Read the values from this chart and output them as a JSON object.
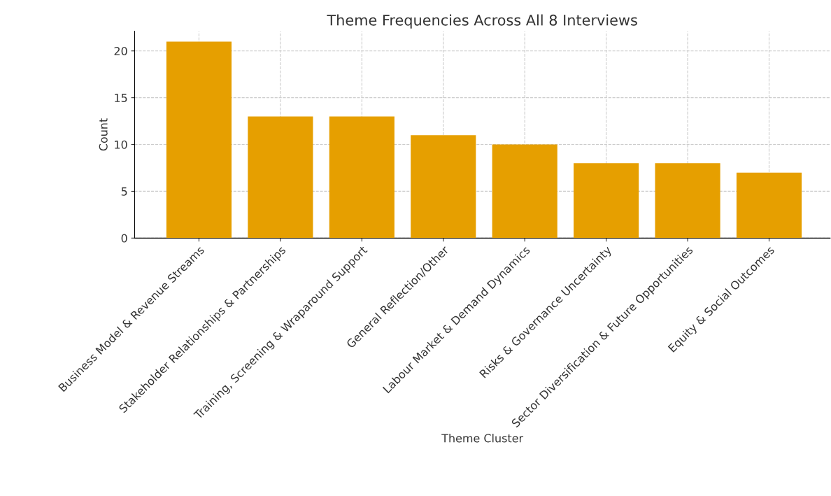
{
  "chart_data": {
    "type": "bar",
    "title": "Theme Frequencies Across All 8 Interviews",
    "xlabel": "Theme Cluster",
    "ylabel": "Count",
    "categories": [
      "Business Model & Revenue Streams",
      "Stakeholder Relationships & Partnerships",
      "Training, Screening & Wraparound Support",
      "General Reflection/Other",
      "Labour Market & Demand Dynamics",
      "Risks & Governance Uncertainty",
      "Sector Diversification & Future Opportunities",
      "Equity & Social Outcomes"
    ],
    "values": [
      21,
      13,
      13,
      11,
      10,
      8,
      8,
      7
    ],
    "color": "#e69f00",
    "ylim": [
      0,
      22.1
    ],
    "yticks": [
      0,
      5,
      10,
      15,
      20
    ],
    "grid": true,
    "line_style": "dashed"
  }
}
